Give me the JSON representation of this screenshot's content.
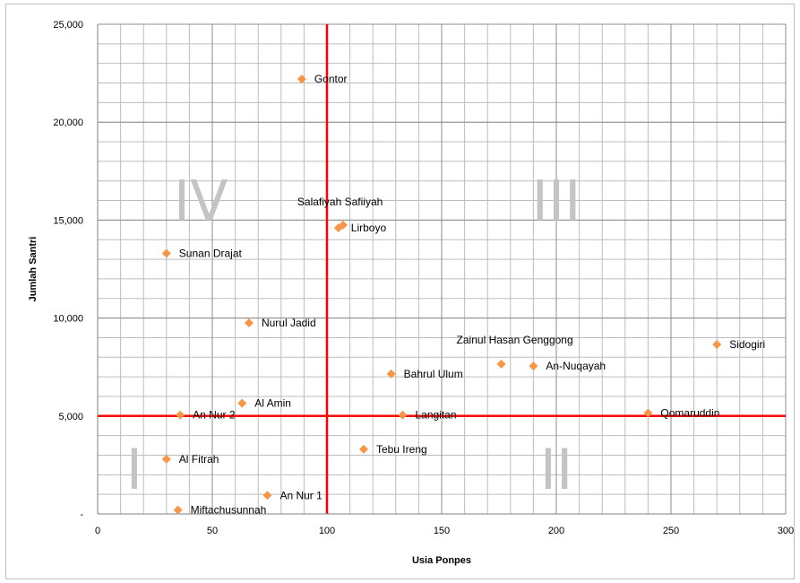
{
  "chart_data": {
    "type": "scatter",
    "title": "",
    "xlabel": "Usia Ponpes",
    "ylabel": "Jumlah Santri",
    "xlim": [
      0,
      300
    ],
    "ylim": [
      0,
      25000
    ],
    "x_ticks": [
      {
        "value": 0,
        "label": "0"
      },
      {
        "value": 50,
        "label": "50"
      },
      {
        "value": 100,
        "label": "100"
      },
      {
        "value": 150,
        "label": "150"
      },
      {
        "value": 200,
        "label": "200"
      },
      {
        "value": 250,
        "label": "250"
      },
      {
        "value": 300,
        "label": "300"
      }
    ],
    "y_ticks": [
      {
        "value": 0,
        "label": "-"
      },
      {
        "value": 5000,
        "label": "5,000"
      },
      {
        "value": 10000,
        "label": "10,000"
      },
      {
        "value": 15000,
        "label": "15,000"
      },
      {
        "value": 20000,
        "label": "20,000"
      },
      {
        "value": 25000,
        "label": "25,000"
      }
    ],
    "grid": true,
    "marker_color": "#f79646",
    "reference_line_color": "#ff0000",
    "reference_lines": {
      "x": 100,
      "y": 5000
    },
    "quadrant_labels": [
      {
        "label": "I",
        "x": 16,
        "y": 2300
      },
      {
        "label": "II",
        "x": 200,
        "y": 2300
      },
      {
        "label": "III",
        "x": 200,
        "y": 16000
      },
      {
        "label": "IV",
        "x": 45,
        "y": 16000
      }
    ],
    "points": [
      {
        "label": "Gontor",
        "x": 89,
        "y": 22200
      },
      {
        "label": "Salafiyah Safiiyah",
        "x": 107,
        "y": 14750
      },
      {
        "label": "Lirboyo",
        "x": 105,
        "y": 14600
      },
      {
        "label": "Sunan Drajat",
        "x": 30,
        "y": 13300
      },
      {
        "label": "Nurul Jadid",
        "x": 66,
        "y": 9750
      },
      {
        "label": "Zainul Hasan Genggong",
        "x": 176,
        "y": 7650
      },
      {
        "label": "An-Nuqayah",
        "x": 190,
        "y": 7550
      },
      {
        "label": "Bahrul Ulum",
        "x": 128,
        "y": 7150
      },
      {
        "label": "Sidogiri",
        "x": 270,
        "y": 8650
      },
      {
        "label": "Al Amin",
        "x": 63,
        "y": 5650
      },
      {
        "label": "An Nur 2",
        "x": 36,
        "y": 5050
      },
      {
        "label": "Langitan",
        "x": 133,
        "y": 5050
      },
      {
        "label": "Qomaruddin",
        "x": 240,
        "y": 5150
      },
      {
        "label": "Tebu Ireng",
        "x": 116,
        "y": 3300
      },
      {
        "label": "Al Fitrah",
        "x": 30,
        "y": 2800
      },
      {
        "label": "An Nur 1",
        "x": 74,
        "y": 950
      },
      {
        "label": "Miftachusunnah",
        "x": 35,
        "y": 200
      }
    ]
  }
}
